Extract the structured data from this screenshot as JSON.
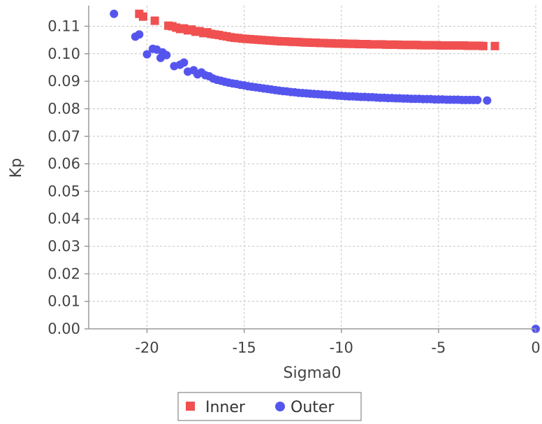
{
  "chart_data": {
    "type": "scatter",
    "xlabel": "Sigma0",
    "ylabel": "Kp",
    "xlim": [
      -23,
      0
    ],
    "ylim": [
      0.0,
      0.1175
    ],
    "x_ticks": [
      -20,
      -15,
      -10,
      -5,
      0
    ],
    "x_tick_labels": [
      "-20",
      "-15",
      "-10",
      "-5",
      "0"
    ],
    "y_ticks": [
      0.0,
      0.01,
      0.02,
      0.03,
      0.04,
      0.05,
      0.06,
      0.07,
      0.08,
      0.09,
      0.1,
      0.11
    ],
    "y_tick_labels": [
      "0.00",
      "0.01",
      "0.02",
      "0.03",
      "0.04",
      "0.05",
      "0.06",
      "0.07",
      "0.08",
      "0.09",
      "0.10",
      "0.11"
    ],
    "grid": true,
    "legend_position": "bottom-center",
    "series": [
      {
        "name": "Inner",
        "marker": "square",
        "color": "#f05050",
        "x": [
          -20.4,
          -20.2,
          -19.6,
          -18.9,
          -18.7,
          -18.5,
          -18.3,
          -18.1,
          -17.9,
          -17.7,
          -17.5,
          -17.3,
          -17.1,
          -16.9,
          -16.7,
          -16.5,
          -16.3,
          -16.1,
          -15.9,
          -15.7,
          -15.5,
          -15.3,
          -15.1,
          -14.9,
          -14.7,
          -14.5,
          -14.3,
          -14.1,
          -13.9,
          -13.7,
          -13.5,
          -13.3,
          -13.1,
          -12.9,
          -12.7,
          -12.5,
          -12.3,
          -12.1,
          -11.9,
          -11.7,
          -11.5,
          -11.3,
          -11.1,
          -10.9,
          -10.7,
          -10.5,
          -10.3,
          -10.1,
          -9.9,
          -9.7,
          -9.5,
          -9.3,
          -9.1,
          -8.9,
          -8.7,
          -8.5,
          -8.3,
          -8.1,
          -7.9,
          -7.7,
          -7.5,
          -7.3,
          -7.1,
          -6.9,
          -6.7,
          -6.5,
          -6.3,
          -6.1,
          -5.9,
          -5.7,
          -5.5,
          -5.3,
          -5.1,
          -4.9,
          -4.7,
          -4.5,
          -4.3,
          -4.1,
          -3.9,
          -3.7,
          -3.5,
          -3.3,
          -3.1,
          -2.9,
          -2.7,
          -2.1
        ],
        "y": [
          0.1145,
          0.1135,
          0.112,
          0.1102,
          0.11,
          0.1095,
          0.109,
          0.1092,
          0.1085,
          0.1088,
          0.108,
          0.1082,
          0.1075,
          0.1078,
          0.1072,
          0.107,
          0.1068,
          0.1065,
          0.1063,
          0.106,
          0.1058,
          0.1057,
          0.1055,
          0.1054,
          0.1053,
          0.1052,
          0.1051,
          0.105,
          0.1049,
          0.1048,
          0.1047,
          0.1046,
          0.1045,
          0.1045,
          0.1044,
          0.1043,
          0.1043,
          0.1042,
          0.1041,
          0.1041,
          0.104,
          0.104,
          0.1039,
          0.1039,
          0.1038,
          0.1038,
          0.1037,
          0.1037,
          0.1037,
          0.1036,
          0.1036,
          0.1036,
          0.1035,
          0.1035,
          0.1035,
          0.1034,
          0.1034,
          0.1034,
          0.1034,
          0.1033,
          0.1033,
          0.1033,
          0.1033,
          0.1032,
          0.1032,
          0.1032,
          0.1032,
          0.1032,
          0.1031,
          0.1031,
          0.1031,
          0.1031,
          0.1031,
          0.103,
          0.103,
          0.103,
          0.103,
          0.103,
          0.103,
          0.103,
          0.1029,
          0.1029,
          0.1029,
          0.1029,
          0.1028,
          0.1028
        ]
      },
      {
        "name": "Outer",
        "marker": "circle",
        "color": "#5555ee",
        "x": [
          -21.7,
          -20.6,
          -20.4,
          -20.0,
          -19.7,
          -19.5,
          -19.3,
          -19.2,
          -19.0,
          -18.6,
          -18.3,
          -18.1,
          -17.9,
          -17.6,
          -17.4,
          -17.2,
          -17.0,
          -16.8,
          -16.6,
          -16.4,
          -16.2,
          -16.0,
          -15.8,
          -15.6,
          -15.4,
          -15.2,
          -15.0,
          -14.8,
          -14.6,
          -14.4,
          -14.2,
          -14.0,
          -13.8,
          -13.6,
          -13.4,
          -13.2,
          -13.0,
          -12.8,
          -12.6,
          -12.4,
          -12.2,
          -12.0,
          -11.8,
          -11.6,
          -11.4,
          -11.2,
          -11.0,
          -10.8,
          -10.6,
          -10.4,
          -10.2,
          -10.0,
          -9.8,
          -9.6,
          -9.4,
          -9.2,
          -9.0,
          -8.8,
          -8.6,
          -8.4,
          -8.2,
          -8.0,
          -7.8,
          -7.6,
          -7.4,
          -7.2,
          -7.0,
          -6.8,
          -6.6,
          -6.4,
          -6.2,
          -6.0,
          -5.8,
          -5.6,
          -5.4,
          -5.2,
          -5.0,
          -4.8,
          -4.6,
          -4.4,
          -4.2,
          -4.0,
          -3.8,
          -3.6,
          -3.4,
          -3.2,
          -3.0,
          -2.5,
          0.0
        ],
        "y": [
          0.1145,
          0.1062,
          0.107,
          0.0998,
          0.1018,
          0.1015,
          0.0985,
          0.1005,
          0.0995,
          0.0955,
          0.096,
          0.0968,
          0.0935,
          0.094,
          0.0925,
          0.0932,
          0.0922,
          0.0918,
          0.091,
          0.0905,
          0.0902,
          0.0898,
          0.0895,
          0.0892,
          0.089,
          0.0887,
          0.0885,
          0.0882,
          0.088,
          0.0878,
          0.0876,
          0.0874,
          0.0872,
          0.087,
          0.0868,
          0.0866,
          0.0864,
          0.0863,
          0.0861,
          0.086,
          0.0858,
          0.0857,
          0.0856,
          0.0855,
          0.0854,
          0.0853,
          0.0852,
          0.0851,
          0.085,
          0.0849,
          0.0848,
          0.0847,
          0.0846,
          0.0845,
          0.0845,
          0.0844,
          0.0843,
          0.0843,
          0.0842,
          0.0842,
          0.0841,
          0.084,
          0.084,
          0.0839,
          0.0839,
          0.0838,
          0.0838,
          0.0837,
          0.0837,
          0.0836,
          0.0836,
          0.0836,
          0.0835,
          0.0835,
          0.0835,
          0.0834,
          0.0834,
          0.0834,
          0.0833,
          0.0833,
          0.0833,
          0.0833,
          0.0832,
          0.0832,
          0.0832,
          0.0832,
          0.0832,
          0.083,
          0.0
        ]
      }
    ]
  }
}
